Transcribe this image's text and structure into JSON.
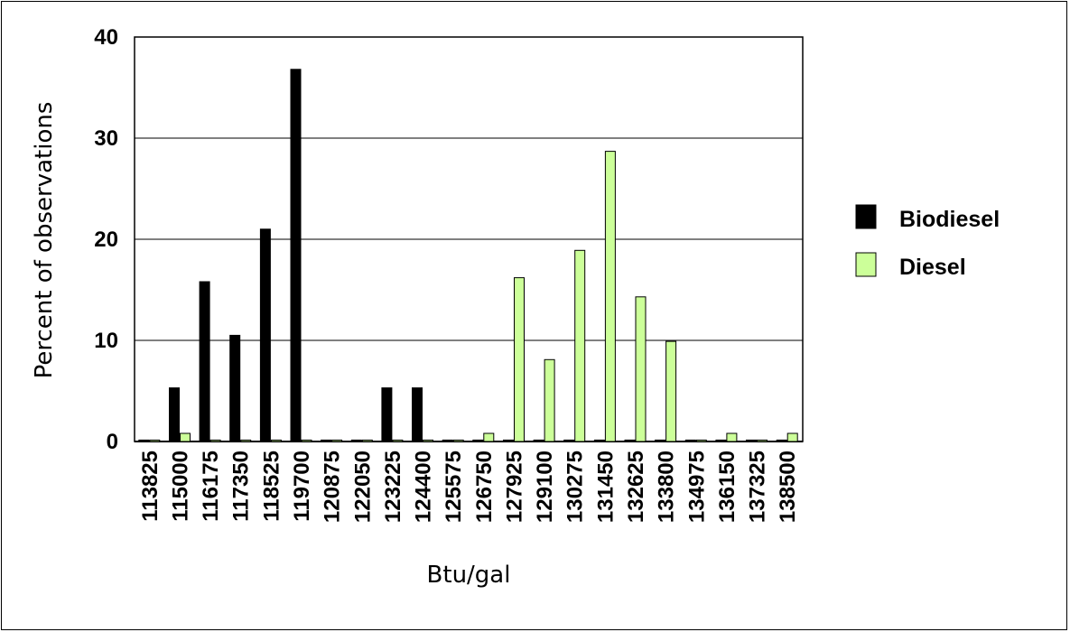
{
  "chart_data": {
    "type": "bar",
    "xlabel": "Btu/gal",
    "ylabel": "Percent of observations",
    "ylim": [
      0,
      40
    ],
    "yticks": [
      0,
      10,
      20,
      30,
      40
    ],
    "grid": "horizontal major gridlines",
    "legend_position": "right",
    "categories": [
      "113825",
      "115000",
      "116175",
      "117350",
      "118525",
      "119700",
      "120875",
      "122050",
      "123225",
      "124400",
      "125575",
      "126750",
      "127925",
      "129100",
      "130275",
      "131450",
      "132625",
      "133800",
      "134975",
      "136150",
      "137325",
      "138500"
    ],
    "series": [
      {
        "name": "Biodiesel",
        "color": "#000000",
        "values": [
          0,
          5.3,
          15.8,
          10.5,
          21.0,
          36.8,
          0,
          0,
          5.3,
          5.3,
          0,
          0,
          0,
          0,
          0,
          0,
          0,
          0,
          0,
          0,
          0,
          0
        ]
      },
      {
        "name": "Diesel",
        "color": "#ccff99",
        "values": [
          0,
          0.8,
          0,
          0,
          0,
          0,
          0,
          0,
          0,
          0,
          0,
          0.8,
          16.2,
          8.1,
          18.9,
          28.7,
          14.3,
          9.9,
          0,
          0.8,
          0,
          0.8
        ]
      }
    ]
  }
}
